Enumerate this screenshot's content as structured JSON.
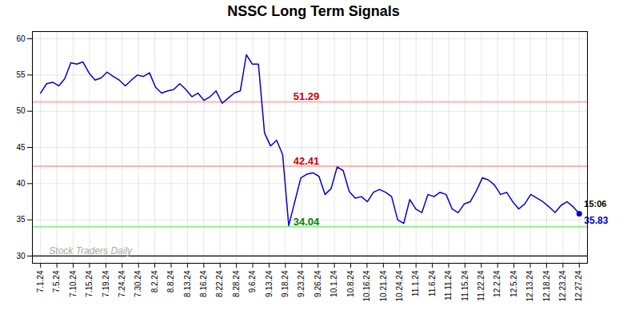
{
  "chart_data": {
    "type": "line",
    "title": "NSSC Long Term Signals",
    "color": "#0000cc",
    "x": [
      0,
      0.3708,
      0.7416,
      1.1124,
      1.4831,
      1.8539,
      2.2247,
      2.5955,
      2.9663,
      3.3371,
      3.7079,
      4.0787,
      4.4494,
      4.8202,
      5.191,
      5.5618,
      5.9326,
      6.3034,
      6.6742,
      7.0449,
      7.4157,
      7.7865,
      8.1573,
      8.5281,
      8.8989,
      9.2697,
      9.6404,
      10.0112,
      10.382,
      10.7528,
      11.1236,
      11.4944,
      11.8652,
      12.236,
      12.6067,
      12.9775,
      13.3483,
      13.7191,
      14.0899,
      14.4607,
      14.8315,
      15.2022,
      15.573,
      15.9438,
      16.3146,
      16.6854,
      17.0562,
      17.427,
      17.7978,
      18.1685,
      18.5393,
      18.9101,
      19.2809,
      19.6517,
      20.0225,
      20.3933,
      20.764,
      21.1348,
      21.5056,
      21.8764,
      22.2472,
      22.618,
      22.9888,
      23.3596,
      23.7303,
      24.1011,
      24.4719,
      24.8427,
      25.2135,
      25.5843,
      25.9551,
      26.3258,
      26.6966,
      27.0674,
      27.4382,
      27.809,
      28.1798,
      28.5506,
      28.9213,
      29.2921,
      29.6629,
      30.0337,
      30.4045,
      30.7753,
      31.1461,
      31.5169,
      31.8876,
      32.2584,
      32.6292,
      33
    ],
    "values": [
      52.5,
      53.8,
      54.0,
      53.5,
      54.5,
      56.7,
      56.5,
      56.8,
      55.3,
      54.3,
      54.6,
      55.4,
      54.8,
      54.3,
      53.5,
      54.3,
      55.0,
      54.8,
      55.3,
      53.3,
      52.5,
      52.8,
      53.0,
      53.8,
      53.0,
      52.0,
      52.5,
      51.5,
      52.0,
      52.8,
      51.1,
      51.8,
      52.5,
      52.8,
      57.8,
      56.5,
      56.5,
      47.0,
      45.2,
      46.0,
      44.0,
      34.2,
      37.5,
      40.8,
      41.3,
      41.5,
      41.0,
      38.5,
      39.3,
      42.3,
      41.8,
      38.9,
      38.0,
      38.2,
      37.5,
      38.8,
      39.2,
      38.8,
      38.2,
      35.0,
      34.5,
      37.8,
      36.5,
      36.0,
      38.5,
      38.2,
      38.8,
      38.5,
      36.5,
      36.0,
      37.2,
      37.5,
      39.0,
      40.8,
      40.5,
      39.8,
      38.5,
      38.8,
      37.5,
      36.5,
      37.2,
      38.5,
      38.0,
      37.5,
      36.8,
      36.0,
      37.0,
      37.5,
      36.8,
      35.83
    ],
    "xlim": [
      -0.5,
      33.5
    ],
    "xticks": [
      {
        "value": 0,
        "label": "7.1.24"
      },
      {
        "value": 1,
        "label": "7.5.24"
      },
      {
        "value": 2,
        "label": "7.10.24"
      },
      {
        "value": 3,
        "label": "7.15.24"
      },
      {
        "value": 4,
        "label": "7.19.24"
      },
      {
        "value": 5,
        "label": "7.24.24"
      },
      {
        "value": 6,
        "label": "7.30.24"
      },
      {
        "value": 7,
        "label": "8.2.24"
      },
      {
        "value": 8,
        "label": "8.8.24"
      },
      {
        "value": 9,
        "label": "8.13.24"
      },
      {
        "value": 10,
        "label": "8.16.24"
      },
      {
        "value": 11,
        "label": "8.22.24"
      },
      {
        "value": 12,
        "label": "8.28.24"
      },
      {
        "value": 13,
        "label": "9.6.24"
      },
      {
        "value": 14,
        "label": "9.13.24"
      },
      {
        "value": 15,
        "label": "9.18.24"
      },
      {
        "value": 16,
        "label": "9.23.24"
      },
      {
        "value": 17,
        "label": "9.26.24"
      },
      {
        "value": 18,
        "label": "10.1.24"
      },
      {
        "value": 19,
        "label": "10.8.24"
      },
      {
        "value": 20,
        "label": "10.16.24"
      },
      {
        "value": 21,
        "label": "10.21.24"
      },
      {
        "value": 22,
        "label": "10.24.24"
      },
      {
        "value": 23,
        "label": "11.1.24"
      },
      {
        "value": 24,
        "label": "11.6.24"
      },
      {
        "value": 25,
        "label": "11.11.24"
      },
      {
        "value": 26,
        "label": "11.15.24"
      },
      {
        "value": 27,
        "label": "11.22.24"
      },
      {
        "value": 28,
        "label": "12.2.24"
      },
      {
        "value": 29,
        "label": "12.5.24"
      },
      {
        "value": 30,
        "label": "12.13.24"
      },
      {
        "value": 31,
        "label": "12.18.24"
      },
      {
        "value": 32,
        "label": "12.23.24"
      },
      {
        "value": 33,
        "label": "12.27.24"
      }
    ],
    "ylim": [
      29,
      61
    ],
    "yticks": [
      30,
      35,
      40,
      45,
      50,
      55,
      60
    ],
    "grid": true,
    "hlines": [
      {
        "value": 51.29,
        "color": "#ffb3b3",
        "label": "51.29",
        "label_color": "#cc0000"
      },
      {
        "value": 42.41,
        "color": "#ffb3b3",
        "label": "42.41",
        "label_color": "#cc0000"
      },
      {
        "value": 34.04,
        "color": "#90EE90",
        "label": "34.04",
        "label_color": "#008000"
      },
      {
        "value": 30,
        "color": "#000000"
      }
    ],
    "endpoint_labels": [
      {
        "text": "15:06",
        "x": 33,
        "y": 35.83,
        "color": "#000000"
      },
      {
        "text": "35.83",
        "x": 33,
        "y": 35.83,
        "color": "#0000cc"
      }
    ],
    "watermark": {
      "text": "Stock Traders Daily",
      "y": 30,
      "color": "#aaaaaa"
    }
  }
}
